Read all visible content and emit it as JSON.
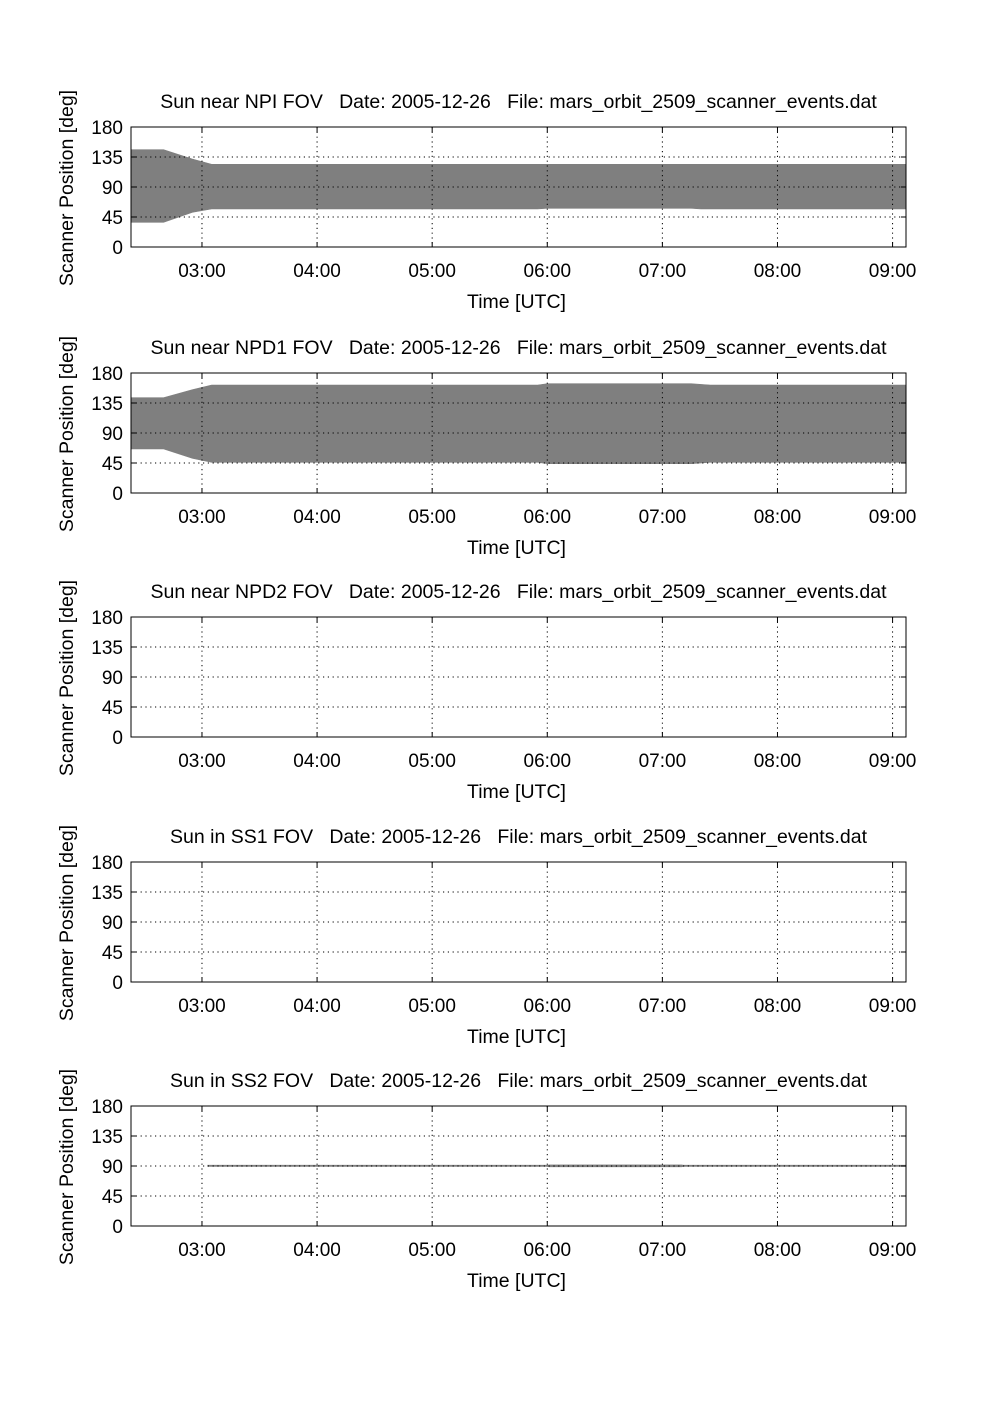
{
  "chart_data": [
    {
      "type": "area",
      "title": "Sun near NPI FOV   Date: 2005-12-26   File: mars_orbit_2509_scanner_events.dat",
      "xlabel": "Time [UTC]",
      "ylabel": "Scanner Position [deg]",
      "xlim": [
        "02:23",
        "09:07"
      ],
      "ylim": [
        0,
        180
      ],
      "x_ticks": [
        "03:00",
        "04:00",
        "05:00",
        "06:00",
        "07:00",
        "08:00",
        "09:00"
      ],
      "y_ticks": [
        "0",
        "45",
        "90",
        "135",
        "180"
      ],
      "grid": true,
      "color": "#7f7f7f",
      "series": [
        {
          "x": [
            "02:23",
            "02:40",
            "02:55",
            "03:05",
            "05:55",
            "06:00",
            "07:15",
            "07:20",
            "09:07"
          ],
          "lower": [
            37,
            37,
            52,
            57,
            57,
            58,
            58,
            57,
            57
          ],
          "upper": [
            146,
            146,
            132,
            124,
            124,
            124,
            124,
            124,
            124
          ]
        }
      ]
    },
    {
      "type": "area",
      "title": "Sun near NPD1 FOV   Date: 2005-12-26   File: mars_orbit_2509_scanner_events.dat",
      "xlabel": "Time [UTC]",
      "ylabel": "Scanner Position [deg]",
      "xlim": [
        "02:23",
        "09:07"
      ],
      "ylim": [
        0,
        180
      ],
      "x_ticks": [
        "03:00",
        "04:00",
        "05:00",
        "06:00",
        "07:00",
        "08:00",
        "09:00"
      ],
      "y_ticks": [
        "0",
        "45",
        "90",
        "135",
        "180"
      ],
      "grid": true,
      "color": "#7f7f7f",
      "series": [
        {
          "x": [
            "02:23",
            "02:40",
            "02:55",
            "03:05",
            "05:55",
            "06:00",
            "07:15",
            "07:25",
            "09:07"
          ],
          "lower": [
            66,
            66,
            52,
            46,
            46,
            44,
            44,
            46,
            46
          ],
          "upper": [
            143,
            143,
            155,
            162,
            162,
            164,
            164,
            162,
            162
          ]
        }
      ]
    },
    {
      "type": "area",
      "title": "Sun near NPD2 FOV   Date: 2005-12-26   File: mars_orbit_2509_scanner_events.dat",
      "xlabel": "Time [UTC]",
      "ylabel": "Scanner Position [deg]",
      "xlim": [
        "02:23",
        "09:07"
      ],
      "ylim": [
        0,
        180
      ],
      "x_ticks": [
        "03:00",
        "04:00",
        "05:00",
        "06:00",
        "07:00",
        "08:00",
        "09:00"
      ],
      "y_ticks": [
        "0",
        "45",
        "90",
        "135",
        "180"
      ],
      "grid": true,
      "color": "#7f7f7f",
      "series": []
    },
    {
      "type": "area",
      "title": "Sun in SS1 FOV   Date: 2005-12-26   File: mars_orbit_2509_scanner_events.dat",
      "xlabel": "Time [UTC]",
      "ylabel": "Scanner Position [deg]",
      "xlim": [
        "02:23",
        "09:07"
      ],
      "ylim": [
        0,
        180
      ],
      "x_ticks": [
        "03:00",
        "04:00",
        "05:00",
        "06:00",
        "07:00",
        "08:00",
        "09:00"
      ],
      "y_ticks": [
        "0",
        "45",
        "90",
        "135",
        "180"
      ],
      "grid": true,
      "color": "#7f7f7f",
      "series": []
    },
    {
      "type": "area",
      "title": "Sun in SS2 FOV   Date: 2005-12-26   File: mars_orbit_2509_scanner_events.dat",
      "xlabel": "Time [UTC]",
      "ylabel": "Scanner Position [deg]",
      "xlim": [
        "02:23",
        "09:07"
      ],
      "ylim": [
        0,
        180
      ],
      "x_ticks": [
        "03:00",
        "04:00",
        "05:00",
        "06:00",
        "07:00",
        "08:00",
        "09:00"
      ],
      "y_ticks": [
        "0",
        "45",
        "90",
        "135",
        "180"
      ],
      "grid": true,
      "color": "#7f7f7f",
      "series": [
        {
          "x": [
            "03:03",
            "06:00",
            "06:01",
            "07:10",
            "07:11",
            "09:07"
          ],
          "lower": [
            89.3,
            89.3,
            88.8,
            88.8,
            89.3,
            89.3
          ],
          "upper": [
            91.2,
            91.2,
            91.7,
            91.7,
            91.2,
            91.2
          ]
        }
      ]
    }
  ]
}
